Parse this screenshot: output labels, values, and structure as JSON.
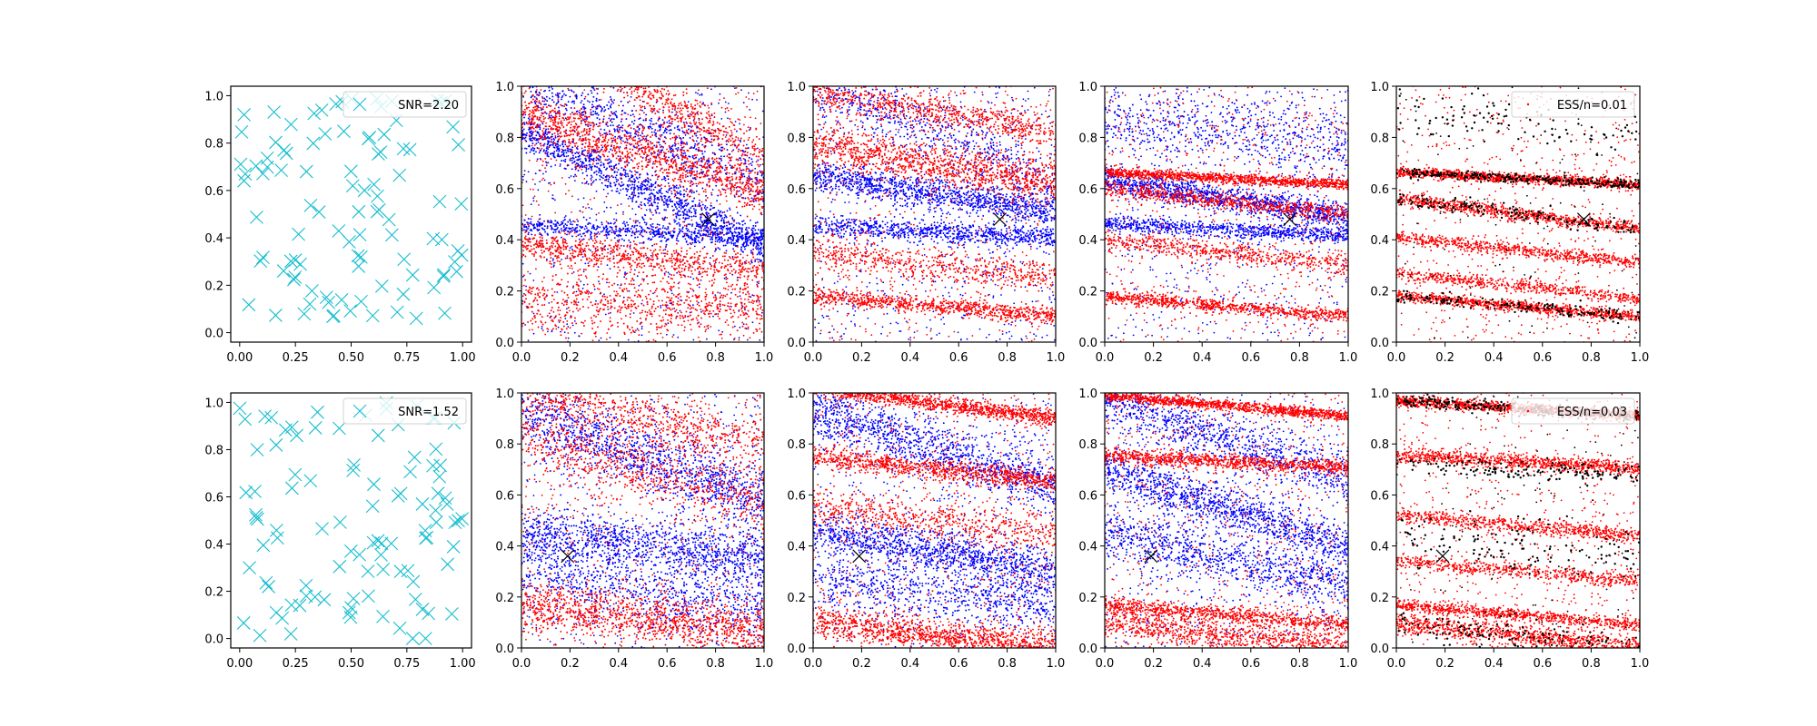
{
  "figure": {
    "background": "#ffffff",
    "colors": {
      "cyan": "#17becf",
      "red": "#ff0000",
      "blue": "#0000ff",
      "black": "#000000"
    }
  },
  "chart_data": [
    {
      "id": "r0c0",
      "type": "scatter",
      "marker": "x-icon",
      "xlim": [
        -0.04,
        1.04
      ],
      "ylim": [
        -0.04,
        1.04
      ],
      "xticks": [
        "0.00",
        "0.25",
        "0.50",
        "0.75",
        "1.00"
      ],
      "yticks": [
        "0.0",
        "0.2",
        "0.4",
        "0.6",
        "0.8",
        "1.0"
      ],
      "legend": {
        "label": "SNR=2.20",
        "placement": "top-right"
      },
      "grid": false,
      "n_points": 100
    },
    {
      "id": "r0c1",
      "type": "scatter",
      "xlim": [
        0,
        1
      ],
      "ylim": [
        0,
        1
      ],
      "xticks": [
        "0.0",
        "0.2",
        "0.4",
        "0.6",
        "0.8",
        "1.0"
      ],
      "yticks": [
        "0.0",
        "0.2",
        "0.4",
        "0.6",
        "0.8",
        "1.0"
      ],
      "series": [
        {
          "color": "#0000ff",
          "bands": [
            [
              0.6,
              -0.45,
              0.035,
              1.0
            ],
            [
              0.43,
              -0.05,
              0.02,
              0.6
            ],
            [
              0.82,
              -0.4,
              0.06,
              0.6
            ]
          ]
        },
        {
          "color": "#ff0000",
          "bands": [
            [
              0.74,
              -0.3,
              0.05,
              1.0
            ],
            [
              0.33,
              -0.1,
              0.03,
              0.6
            ],
            [
              0.98,
              -0.5,
              0.04,
              0.6
            ],
            [
              0.15,
              0.0,
              0.06,
              0.6
            ]
          ]
        }
      ],
      "target": {
        "x": 0.77,
        "y": 0.48
      }
    },
    {
      "id": "r0c2",
      "type": "scatter",
      "xlim": [
        0,
        1
      ],
      "ylim": [
        0,
        1
      ],
      "xticks": [
        "0.0",
        "0.2",
        "0.4",
        "0.6",
        "0.8",
        "1.0"
      ],
      "yticks": [
        "0.0",
        "0.2",
        "0.4",
        "0.6",
        "0.8",
        "1.0"
      ],
      "series": [
        {
          "color": "#0000ff",
          "bands": [
            [
              0.58,
              -0.14,
              0.03,
              1.0
            ],
            [
              0.43,
              -0.05,
              0.02,
              0.7
            ],
            [
              0.82,
              -0.4,
              0.06,
              0.5
            ]
          ]
        },
        {
          "color": "#ff0000",
          "bands": [
            [
              0.7,
              -0.15,
              0.04,
              1.0
            ],
            [
              0.14,
              -0.08,
              0.015,
              0.7
            ],
            [
              0.9,
              -0.15,
              0.03,
              0.6
            ],
            [
              0.3,
              -0.1,
              0.03,
              0.5
            ]
          ]
        }
      ],
      "target": {
        "x": 0.77,
        "y": 0.48
      }
    },
    {
      "id": "r0c3",
      "type": "scatter",
      "xlim": [
        0,
        1
      ],
      "ylim": [
        0,
        1
      ],
      "xticks": [
        "0.0",
        "0.2",
        "0.4",
        "0.6",
        "0.8",
        "1.0"
      ],
      "yticks": [
        "0.0",
        "0.2",
        "0.4",
        "0.6",
        "0.8",
        "1.0"
      ],
      "series": [
        {
          "color": "#0000ff",
          "bands": [
            [
              0.56,
              -0.14,
              0.025,
              1.0
            ],
            [
              0.44,
              -0.05,
              0.015,
              0.7
            ],
            [
              0.82,
              -0.1,
              0.07,
              0.5
            ]
          ]
        },
        {
          "color": "#ff0000",
          "bands": [
            [
              0.64,
              -0.05,
              0.01,
              1.0
            ],
            [
              0.14,
              -0.08,
              0.012,
              0.7
            ],
            [
              0.55,
              -0.1,
              0.015,
              0.6
            ],
            [
              0.35,
              -0.1,
              0.02,
              0.5
            ]
          ]
        }
      ],
      "target": {
        "x": 0.76,
        "y": 0.48
      }
    },
    {
      "id": "r0c4",
      "type": "scatter",
      "xlim": [
        0,
        1
      ],
      "ylim": [
        0,
        1
      ],
      "xticks": [
        "0.0",
        "0.2",
        "0.4",
        "0.6",
        "0.8",
        "1.0"
      ],
      "yticks": [
        "0.0",
        "0.2",
        "0.4",
        "0.6",
        "0.8",
        "1.0"
      ],
      "legend": {
        "label": "ESS/n=0.01",
        "placement": "top-right"
      },
      "series": [
        {
          "color": "#ff0000",
          "bands": [
            [
              0.64,
              -0.05,
              0.01,
              1.0
            ],
            [
              0.14,
              -0.08,
              0.01,
              0.8
            ],
            [
              0.5,
              -0.12,
              0.012,
              0.7
            ],
            [
              0.36,
              -0.1,
              0.012,
              0.6
            ],
            [
              0.22,
              -0.1,
              0.012,
              0.5
            ]
          ]
        },
        {
          "color": "#000000",
          "bands": [
            [
              0.64,
              -0.05,
              0.01,
              1.0
            ],
            [
              0.14,
              -0.08,
              0.012,
              0.6
            ],
            [
              0.5,
              -0.12,
              0.015,
              0.6
            ],
            [
              0.85,
              -0.1,
              0.05,
              0.4
            ]
          ]
        }
      ],
      "target": {
        "x": 0.77,
        "y": 0.48
      }
    },
    {
      "id": "r1c0",
      "type": "scatter",
      "marker": "x-icon",
      "xlim": [
        -0.04,
        1.04
      ],
      "ylim": [
        -0.04,
        1.04
      ],
      "xticks": [
        "0.00",
        "0.25",
        "0.50",
        "0.75",
        "1.00"
      ],
      "yticks": [
        "0.0",
        "0.2",
        "0.4",
        "0.6",
        "0.8",
        "1.0"
      ],
      "legend": {
        "label": "SNR=1.52",
        "placement": "top-right"
      },
      "grid": false,
      "n_points": 100
    },
    {
      "id": "r1c1",
      "type": "scatter",
      "xlim": [
        0,
        1
      ],
      "ylim": [
        0,
        1
      ],
      "xticks": [
        "0.0",
        "0.2",
        "0.4",
        "0.6",
        "0.8",
        "1.0"
      ],
      "yticks": [
        "0.0",
        "0.2",
        "0.4",
        "0.6",
        "0.8",
        "1.0"
      ],
      "series": [
        {
          "color": "#0000ff",
          "bands": [
            [
              0.75,
              -0.35,
              0.06,
              1.0
            ],
            [
              0.4,
              -0.1,
              0.05,
              1.0
            ],
            [
              0.22,
              -0.15,
              0.06,
              0.6
            ]
          ]
        },
        {
          "color": "#ff0000",
          "bands": [
            [
              0.12,
              -0.1,
              0.05,
              1.0
            ],
            [
              0.7,
              -0.25,
              0.06,
              0.6
            ],
            [
              0.9,
              -0.2,
              0.05,
              0.6
            ]
          ]
        }
      ],
      "target": {
        "x": 0.19,
        "y": 0.36
      }
    },
    {
      "id": "r1c2",
      "type": "scatter",
      "xlim": [
        0,
        1
      ],
      "ylim": [
        0,
        1
      ],
      "xticks": [
        "0.0",
        "0.2",
        "0.4",
        "0.6",
        "0.8",
        "1.0"
      ],
      "yticks": [
        "0.0",
        "0.2",
        "0.4",
        "0.6",
        "0.8",
        "1.0"
      ],
      "series": [
        {
          "color": "#0000ff",
          "bands": [
            [
              0.78,
              -0.3,
              0.05,
              1.0
            ],
            [
              0.38,
              -0.15,
              0.04,
              1.0
            ],
            [
              0.22,
              -0.1,
              0.05,
              0.6
            ]
          ]
        },
        {
          "color": "#ff0000",
          "bands": [
            [
              0.96,
              -0.12,
              0.015,
              1.0
            ],
            [
              0.7,
              -0.1,
              0.02,
              0.8
            ],
            [
              0.05,
              -0.1,
              0.03,
              1.0
            ],
            [
              0.5,
              -0.1,
              0.04,
              0.5
            ]
          ]
        }
      ],
      "target": {
        "x": 0.19,
        "y": 0.36
      }
    },
    {
      "id": "r1c3",
      "type": "scatter",
      "xlim": [
        0,
        1
      ],
      "ylim": [
        0,
        1
      ],
      "xticks": [
        "0.0",
        "0.2",
        "0.4",
        "0.6",
        "0.8",
        "1.0"
      ],
      "yticks": [
        "0.0",
        "0.2",
        "0.4",
        "0.6",
        "0.8",
        "1.0"
      ],
      "series": [
        {
          "color": "#0000ff",
          "bands": [
            [
              0.82,
              -0.3,
              0.05,
              0.8
            ],
            [
              0.55,
              -0.3,
              0.04,
              1.0
            ],
            [
              0.35,
              -0.2,
              0.05,
              0.8
            ]
          ]
        },
        {
          "color": "#ff0000",
          "bands": [
            [
              0.95,
              -0.08,
              0.01,
              1.0
            ],
            [
              0.73,
              -0.05,
              0.015,
              0.8
            ],
            [
              0.13,
              -0.08,
              0.015,
              0.7
            ],
            [
              0.05,
              -0.1,
              0.03,
              0.8
            ]
          ]
        }
      ],
      "target": {
        "x": 0.19,
        "y": 0.36
      }
    },
    {
      "id": "r1c4",
      "type": "scatter",
      "xlim": [
        0,
        1
      ],
      "ylim": [
        0,
        1
      ],
      "xticks": [
        "0.0",
        "0.2",
        "0.4",
        "0.6",
        "0.8",
        "1.0"
      ],
      "yticks": [
        "0.0",
        "0.2",
        "0.4",
        "0.6",
        "0.8",
        "1.0"
      ],
      "legend": {
        "label": "ESS/n=0.03",
        "placement": "top-right"
      },
      "series": [
        {
          "color": "#ff0000",
          "bands": [
            [
              0.94,
              -0.06,
              0.01,
              1.0
            ],
            [
              0.73,
              -0.05,
              0.015,
              0.8
            ],
            [
              0.13,
              -0.08,
              0.012,
              0.7
            ],
            [
              0.05,
              -0.1,
              0.02,
              0.8
            ],
            [
              0.48,
              -0.08,
              0.015,
              0.6
            ],
            [
              0.3,
              -0.08,
              0.015,
              0.5
            ]
          ]
        },
        {
          "color": "#000000",
          "bands": [
            [
              0.94,
              -0.06,
              0.012,
              1.0
            ],
            [
              0.7,
              -0.05,
              0.02,
              0.6
            ],
            [
              0.4,
              -0.08,
              0.05,
              0.5
            ],
            [
              0.05,
              -0.1,
              0.03,
              0.5
            ]
          ]
        }
      ],
      "target": {
        "x": 0.19,
        "y": 0.36
      }
    }
  ]
}
